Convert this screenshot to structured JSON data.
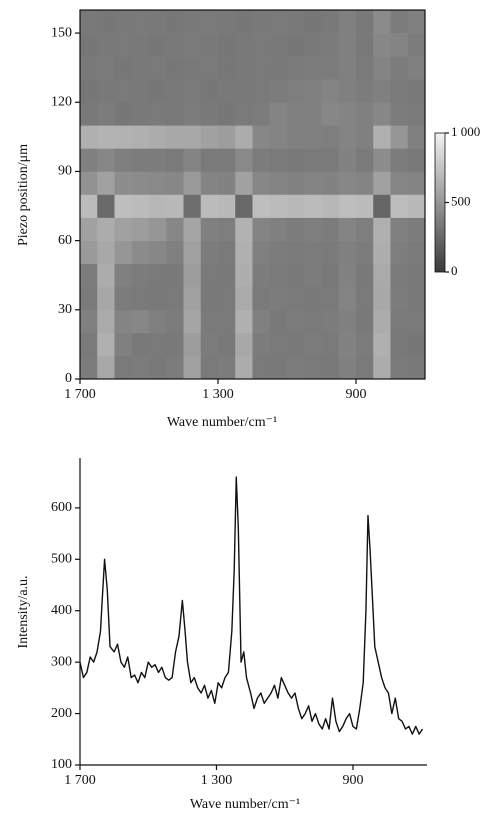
{
  "chart_data": [
    {
      "type": "heatmap",
      "xlabel": "Wave number/cm⁻¹",
      "ylabel": "Piezo position/μm",
      "xlim": [
        1700,
        700
      ],
      "ylim": [
        0,
        160
      ],
      "xticks": [
        {
          "value": 1700,
          "label": "1 700"
        },
        {
          "value": 1300,
          "label": "1 300"
        },
        900
      ],
      "yticks": [
        0,
        30,
        60,
        90,
        120,
        150
      ],
      "xbins": [
        1700,
        1650,
        1600,
        1550,
        1500,
        1450,
        1400,
        1350,
        1300,
        1250,
        1200,
        1150,
        1100,
        1050,
        1000,
        950,
        900,
        850,
        800,
        750,
        700
      ],
      "ybins": [
        0,
        10,
        20,
        30,
        40,
        50,
        60,
        70,
        80,
        90,
        100,
        110,
        120,
        130,
        140,
        150,
        160
      ],
      "colors": [
        "#3a3a3a",
        "#f2f2f2"
      ],
      "colorbar": {
        "lim": [
          0,
          1000
        ],
        "ticks": [
          0,
          500,
          {
            "value": 1000,
            "label": "1 000"
          }
        ]
      },
      "z": [
        [
          360,
          600,
          350,
          360,
          340,
          360,
          560,
          350,
          360,
          620,
          350,
          340,
          360,
          350,
          340,
          380,
          350,
          620,
          350,
          340
        ],
        [
          350,
          640,
          380,
          340,
          350,
          340,
          540,
          360,
          340,
          600,
          360,
          350,
          340,
          360,
          350,
          390,
          360,
          640,
          340,
          330
        ],
        [
          380,
          610,
          400,
          420,
          380,
          360,
          580,
          350,
          350,
          640,
          380,
          340,
          360,
          350,
          360,
          380,
          340,
          620,
          350,
          350
        ],
        [
          350,
          590,
          360,
          350,
          340,
          350,
          560,
          340,
          350,
          610,
          350,
          360,
          350,
          340,
          350,
          400,
          350,
          600,
          360,
          340
        ],
        [
          360,
          620,
          380,
          360,
          350,
          340,
          540,
          350,
          340,
          630,
          360,
          350,
          340,
          360,
          340,
          390,
          340,
          610,
          350,
          340
        ],
        [
          520,
          600,
          500,
          440,
          420,
          380,
          560,
          360,
          350,
          640,
          380,
          360,
          350,
          360,
          350,
          380,
          360,
          630,
          370,
          350
        ],
        [
          560,
          620,
          560,
          540,
          500,
          420,
          580,
          380,
          370,
          650,
          400,
          380,
          360,
          370,
          360,
          400,
          370,
          640,
          380,
          360
        ],
        [
          700,
          260,
          720,
          700,
          680,
          690,
          280,
          700,
          690,
          250,
          720,
          700,
          690,
          700,
          680,
          720,
          700,
          240,
          710,
          690
        ],
        [
          480,
          560,
          450,
          440,
          430,
          420,
          520,
          400,
          390,
          560,
          420,
          400,
          390,
          400,
          390,
          420,
          400,
          560,
          410,
          400
        ],
        [
          380,
          420,
          370,
          360,
          360,
          350,
          400,
          350,
          350,
          430,
          360,
          350,
          340,
          350,
          350,
          390,
          350,
          450,
          360,
          340
        ],
        [
          640,
          660,
          650,
          640,
          620,
          600,
          600,
          560,
          540,
          620,
          420,
          400,
          380,
          380,
          370,
          400,
          380,
          640,
          500,
          380
        ],
        [
          340,
          360,
          330,
          340,
          350,
          340,
          360,
          340,
          330,
          350,
          360,
          400,
          380,
          380,
          420,
          400,
          380,
          420,
          360,
          350
        ],
        [
          330,
          340,
          350,
          340,
          330,
          340,
          350,
          330,
          340,
          340,
          350,
          360,
          370,
          380,
          400,
          380,
          360,
          380,
          350,
          340
        ],
        [
          340,
          350,
          330,
          340,
          350,
          330,
          340,
          350,
          330,
          340,
          350,
          340,
          350,
          360,
          360,
          380,
          350,
          400,
          360,
          380
        ],
        [
          330,
          340,
          350,
          340,
          330,
          340,
          350,
          340,
          330,
          340,
          350,
          340,
          330,
          340,
          350,
          380,
          340,
          420,
          400,
          360
        ],
        [
          340,
          330,
          340,
          350,
          340,
          330,
          340,
          350,
          340,
          330,
          340,
          350,
          340,
          330,
          340,
          380,
          340,
          440,
          360,
          380
        ]
      ]
    },
    {
      "type": "line",
      "xlabel": "Wave number/cm⁻¹",
      "ylabel": "Intensity/a.u.",
      "xlim": [
        1700,
        683
      ],
      "ylim": [
        100,
        697
      ],
      "xticks": [
        {
          "value": 1700,
          "label": "1 700"
        },
        {
          "value": 1300,
          "label": "1 300"
        },
        900
      ],
      "yticks": [
        100,
        200,
        300,
        400,
        500,
        600
      ],
      "color": "#111111",
      "x": [
        1700,
        1690,
        1680,
        1670,
        1660,
        1650,
        1640,
        1635,
        1628,
        1620,
        1612,
        1600,
        1590,
        1580,
        1570,
        1560,
        1550,
        1540,
        1530,
        1520,
        1510,
        1500,
        1490,
        1480,
        1470,
        1460,
        1450,
        1440,
        1430,
        1420,
        1410,
        1400,
        1392,
        1385,
        1375,
        1365,
        1355,
        1345,
        1335,
        1325,
        1315,
        1305,
        1295,
        1285,
        1275,
        1265,
        1255,
        1248,
        1242,
        1236,
        1228,
        1220,
        1212,
        1200,
        1190,
        1180,
        1170,
        1160,
        1150,
        1140,
        1130,
        1120,
        1110,
        1100,
        1090,
        1080,
        1070,
        1060,
        1050,
        1040,
        1030,
        1020,
        1010,
        1000,
        990,
        980,
        970,
        960,
        950,
        940,
        930,
        920,
        910,
        900,
        890,
        880,
        870,
        862,
        856,
        850,
        844,
        836,
        826,
        816,
        806,
        796,
        786,
        776,
        766,
        756,
        746,
        736,
        726,
        716,
        706,
        696
      ],
      "values": [
        300,
        270,
        280,
        310,
        300,
        320,
        360,
        420,
        500,
        440,
        330,
        320,
        335,
        300,
        290,
        310,
        270,
        275,
        260,
        280,
        270,
        300,
        290,
        295,
        280,
        290,
        270,
        265,
        270,
        320,
        350,
        420,
        360,
        300,
        260,
        270,
        250,
        240,
        255,
        230,
        245,
        220,
        260,
        250,
        270,
        280,
        360,
        480,
        660,
        560,
        300,
        320,
        270,
        240,
        210,
        230,
        240,
        220,
        230,
        240,
        255,
        230,
        270,
        255,
        240,
        230,
        240,
        210,
        190,
        200,
        215,
        185,
        200,
        180,
        170,
        190,
        170,
        230,
        185,
        165,
        175,
        190,
        200,
        175,
        170,
        210,
        260,
        400,
        585,
        520,
        440,
        330,
        300,
        270,
        250,
        240,
        200,
        230,
        190,
        185,
        170,
        175,
        160,
        175,
        160,
        170
      ]
    }
  ]
}
